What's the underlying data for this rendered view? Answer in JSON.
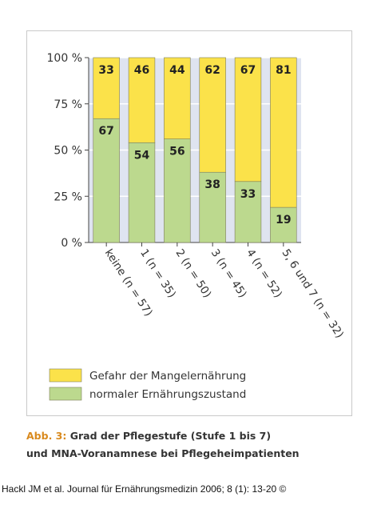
{
  "chart_data": {
    "type": "bar",
    "stacked": true,
    "categories": [
      "keine (n = 57)",
      "1 (n = 35)",
      "2 (n = 50)",
      "3 (n = 45)",
      "4 (n = 52)",
      "5, 6 und 7 (n = 32)"
    ],
    "series": [
      {
        "name": "normaler Ernährungszustand",
        "color": "#bcd98e",
        "values": [
          67,
          54,
          56,
          38,
          33,
          19
        ]
      },
      {
        "name": "Gefahr der Mangelernährung",
        "color": "#fbe24a",
        "values": [
          33,
          46,
          44,
          62,
          67,
          81
        ]
      }
    ],
    "yticks": [
      "0 %",
      "25 %",
      "50 %",
      "75 %",
      "100 %"
    ],
    "ylim": [
      0,
      100
    ],
    "grid": true,
    "plot_background": "#dfe4f0",
    "legend_position": "bottom-left"
  },
  "caption": {
    "lead": "Abb. 3:",
    "line1": "Grad der Pflegestufe (Stufe 1 bis 7)",
    "line2": "und MNA-Voranamnese bei Pflegeheimpatienten"
  },
  "source": "Hackl JM et al. Journal für Ernährungsmedizin 2006; 8 (1): 13-20 ©"
}
